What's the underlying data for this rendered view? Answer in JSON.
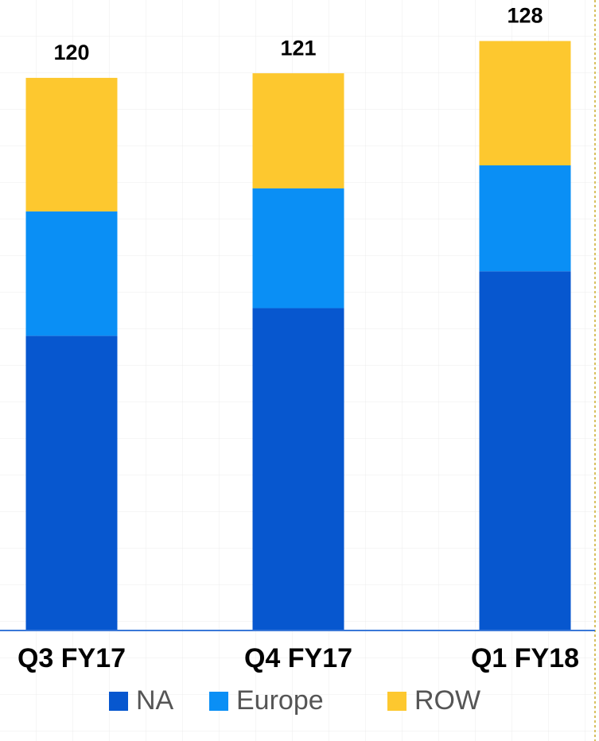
{
  "chart_data": {
    "type": "stacked_bar",
    "categories": [
      "Q3 FY17",
      "Q4 FY17",
      "Q1 FY18"
    ],
    "series": [
      {
        "name": "NA",
        "color": "#0757cf",
        "values": [
          64,
          70,
          78
        ]
      },
      {
        "name": "Europe",
        "color": "#0a8ff5",
        "values": [
          27,
          26,
          23
        ]
      },
      {
        "name": "ROW",
        "color": "#fdc82f",
        "values": [
          29,
          25,
          27
        ]
      }
    ],
    "totals": [
      120,
      121,
      128
    ],
    "ylim": [
      0,
      130
    ]
  }
}
